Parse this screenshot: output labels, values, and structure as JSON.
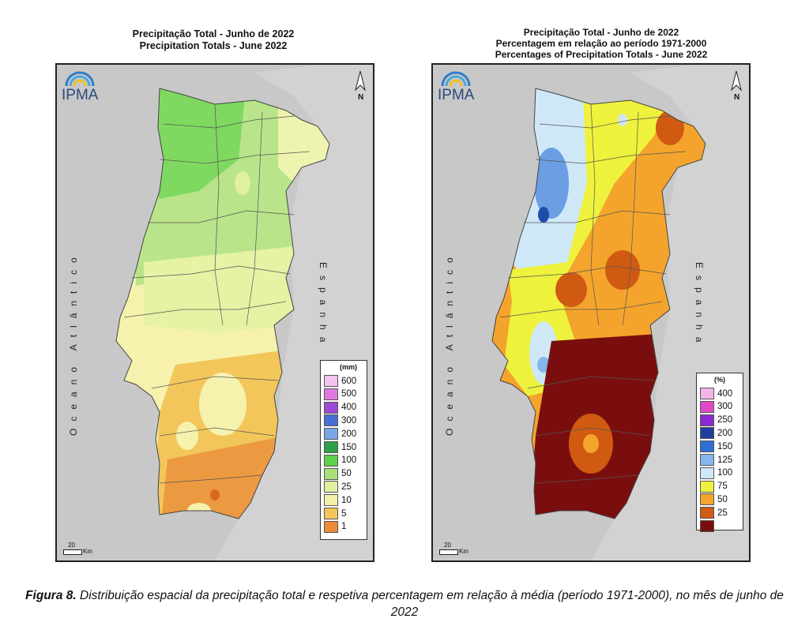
{
  "maps": [
    {
      "title_lines": [
        "Precipitação Total  -  Junho de 2022",
        "Precipitation Totals - June 2022"
      ],
      "logo": "IPMA",
      "logo_icon": "ipma-rainbow-icon",
      "north": "N",
      "ocean_label": "Oceano Atlântico",
      "spain_label": "Espanha",
      "scale_label": "20",
      "scale_unit": "Km",
      "legend_unit": "(mm)",
      "legend": [
        {
          "label": "600",
          "color": "#f4c2f0"
        },
        {
          "label": "500",
          "color": "#e079e0"
        },
        {
          "label": "400",
          "color": "#9d4bd6"
        },
        {
          "label": "300",
          "color": "#4a6fd4"
        },
        {
          "label": "200",
          "color": "#79a7e8"
        },
        {
          "label": "150",
          "color": "#2ea04a"
        },
        {
          "label": "100",
          "color": "#5ecf4a"
        },
        {
          "label": "50",
          "color": "#a9e07a"
        },
        {
          "label": "25",
          "color": "#e0f0a0"
        },
        {
          "label": "10",
          "color": "#f4f0a8"
        },
        {
          "label": "5",
          "color": "#f2c65a"
        },
        {
          "label": "1",
          "color": "#ec8c38"
        }
      ]
    },
    {
      "title_lines": [
        "Precipitação Total  -  Junho de 2022",
        "Percentagem em relação ao período 1971-2000",
        "Percentages of Precipitation Totals - June 2022"
      ],
      "logo": "IPMA",
      "logo_icon": "ipma-rainbow-icon",
      "north": "N",
      "ocean_label": "Oceano Atlântico",
      "spain_label": "Espanha",
      "scale_label": "20",
      "scale_unit": "Km",
      "legend_unit": "(%)",
      "legend": [
        {
          "label": "400",
          "color": "#f4b4e8"
        },
        {
          "label": "300",
          "color": "#e048c8"
        },
        {
          "label": "250",
          "color": "#8a2ad0"
        },
        {
          "label": "200",
          "color": "#1f3e9a"
        },
        {
          "label": "150",
          "color": "#2f6fd4"
        },
        {
          "label": "125",
          "color": "#86b6ee"
        },
        {
          "label": "100",
          "color": "#cfe8f8"
        },
        {
          "label": "75",
          "color": "#eef23c"
        },
        {
          "label": "50",
          "color": "#f4a42c"
        },
        {
          "label": "25",
          "color": "#d05a12"
        },
        {
          "label": "",
          "color": "#7a0e0e"
        }
      ]
    }
  ],
  "caption": {
    "bold": "Figura 8.",
    "text": " Distribuição espacial da precipitação total e respetiva percentagem em relação à média (período 1971-2000), no mês de junho de 2022"
  }
}
